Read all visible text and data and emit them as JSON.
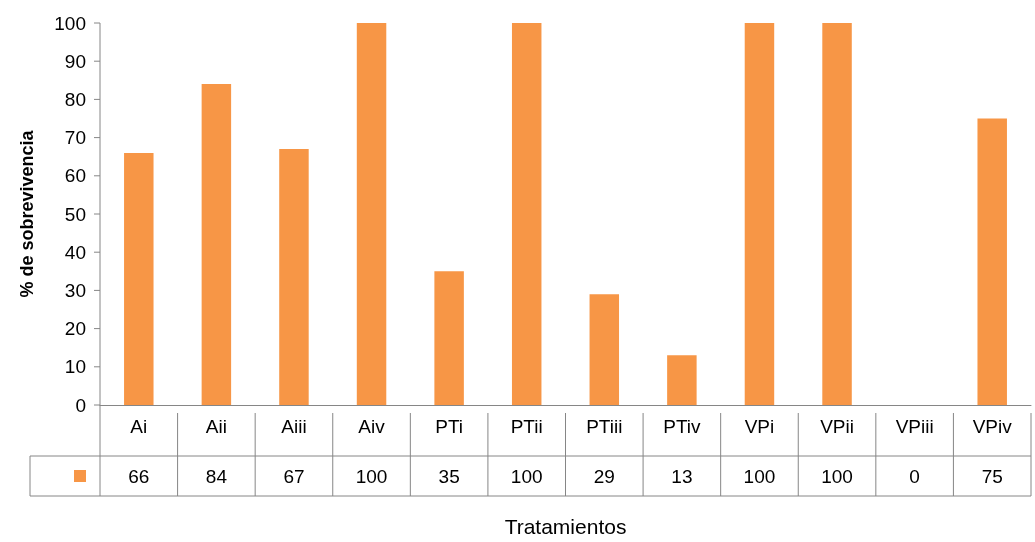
{
  "chart_data": {
    "type": "bar",
    "xlabel": "Tratamientos",
    "ylabel": "% de sobrevivencia",
    "categories": [
      "Ai",
      "Aii",
      "Aiii",
      "Aiv",
      "PTi",
      "PTii",
      "PTiii",
      "PTiv",
      "VPi",
      "VPii",
      "VPiii",
      "VPiv"
    ],
    "values": [
      66,
      84,
      67,
      100,
      35,
      100,
      29,
      13,
      100,
      100,
      0,
      75
    ],
    "color": "#f79646",
    "ylim": [
      0,
      100
    ],
    "yticks": [
      0,
      10,
      20,
      30,
      40,
      50,
      60,
      70,
      80,
      90,
      100
    ],
    "grid": false,
    "data_labels": true
  }
}
